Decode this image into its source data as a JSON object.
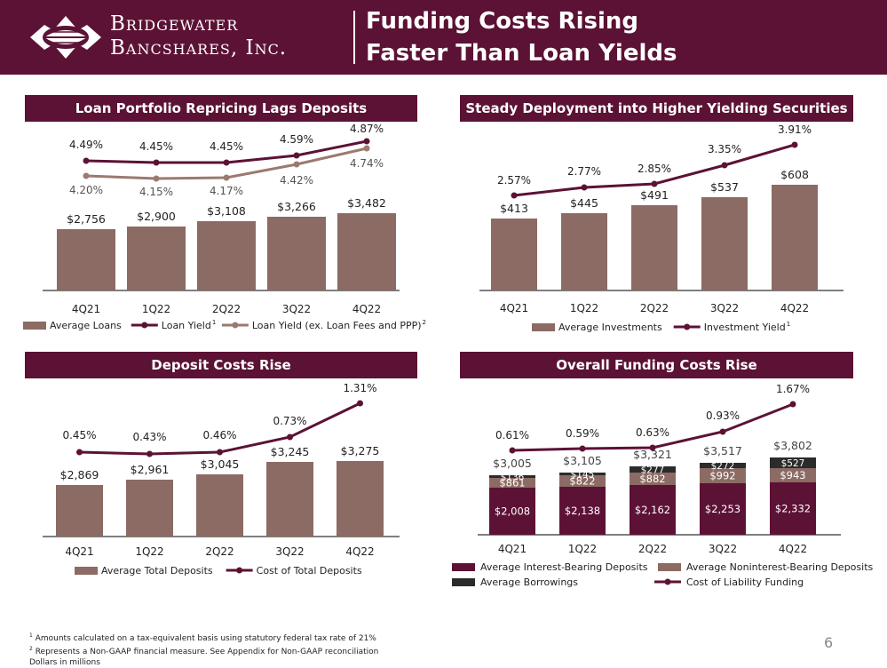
{
  "header": {
    "brand_line1": "Bridgewater",
    "brand_line2": "Bancshares, Inc.",
    "title_line1": "Funding Costs Rising",
    "title_line2": "Faster Than Loan Yields"
  },
  "colors": {
    "maroon": "#5c1234",
    "bar": "#8b6b63",
    "secondary_line": "#9a7a70",
    "borrowings": "#2b2b2b",
    "axis": "#333333"
  },
  "chart_data": [
    {
      "id": "loans",
      "type": "bar",
      "title": "Loan Portfolio Repricing Lags Deposits",
      "categories": [
        "4Q21",
        "1Q22",
        "2Q22",
        "3Q22",
        "4Q22"
      ],
      "bars": {
        "name": "Average Loans",
        "values": [
          2756,
          2900,
          3108,
          3266,
          3482
        ],
        "labels": [
          "$2,756",
          "$2,900",
          "$3,108",
          "$3,266",
          "$3,482"
        ]
      },
      "lines": [
        {
          "name": "Loan Yield",
          "sup": "1",
          "values": [
            4.49,
            4.45,
            4.45,
            4.59,
            4.87
          ],
          "labels": [
            "4.49%",
            "4.45%",
            "4.45%",
            "4.59%",
            "4.87%"
          ]
        },
        {
          "name": "Loan Yield (ex. Loan Fees and PPP)",
          "sup": "2",
          "values": [
            4.2,
            4.15,
            4.17,
            4.42,
            4.74
          ],
          "labels": [
            "4.20%",
            "4.15%",
            "4.17%",
            "4.42%",
            "4.74%"
          ]
        }
      ]
    },
    {
      "id": "securities",
      "type": "bar",
      "title": "Steady Deployment into Higher Yielding Securities",
      "categories": [
        "4Q21",
        "1Q22",
        "2Q22",
        "3Q22",
        "4Q22"
      ],
      "bars": {
        "name": "Average Investments",
        "values": [
          413,
          445,
          491,
          537,
          608
        ],
        "labels": [
          "$413",
          "$445",
          "$491",
          "$537",
          "$608"
        ]
      },
      "lines": [
        {
          "name": "Investment Yield",
          "sup": "1",
          "values": [
            2.57,
            2.77,
            2.85,
            3.35,
            3.91
          ],
          "labels": [
            "2.57%",
            "2.77%",
            "2.85%",
            "3.35%",
            "3.91%"
          ]
        }
      ]
    },
    {
      "id": "deposits",
      "type": "bar",
      "title": "Deposit Costs Rise",
      "categories": [
        "4Q21",
        "1Q22",
        "2Q22",
        "3Q22",
        "4Q22"
      ],
      "bars": {
        "name": "Average Total Deposits",
        "values": [
          2869,
          2961,
          3045,
          3245,
          3275
        ],
        "labels": [
          "$2,869",
          "$2,961",
          "$3,045",
          "$3,245",
          "$3,275"
        ]
      },
      "lines": [
        {
          "name": "Cost of Total Deposits",
          "sup": "",
          "values": [
            0.45,
            0.43,
            0.46,
            0.73,
            1.31
          ],
          "labels": [
            "0.45%",
            "0.43%",
            "0.46%",
            "0.73%",
            "1.31%"
          ]
        }
      ]
    },
    {
      "id": "funding",
      "type": "stacked_bar",
      "title": "Overall Funding Costs Rise",
      "categories": [
        "4Q21",
        "1Q22",
        "2Q22",
        "3Q22",
        "4Q22"
      ],
      "stacks": [
        {
          "name": "Average Interest-Bearing Deposits",
          "values": [
            2008,
            2138,
            2162,
            2253,
            2332
          ],
          "labels": [
            "$2,008",
            "$2,138",
            "$2,162",
            "$2,253",
            "$2,332"
          ]
        },
        {
          "name": "Average Noninterest-Bearing Deposits",
          "values": [
            861,
            822,
            882,
            992,
            943
          ],
          "labels": [
            "$861",
            "$822",
            "$882",
            "$992",
            "$943"
          ]
        },
        {
          "name": "Average Borrowings",
          "values": [
            136,
            145,
            277,
            272,
            527
          ],
          "labels": [
            "$136",
            "$145",
            "$277",
            "$272",
            "$527"
          ]
        }
      ],
      "totals": [
        "$3,005",
        "$3,105",
        "$3,321",
        "$3,517",
        "$3,802"
      ],
      "lines": [
        {
          "name": "Cost of Liability Funding",
          "sup": "",
          "values": [
            0.61,
            0.59,
            0.63,
            0.93,
            1.67
          ],
          "labels": [
            "0.61%",
            "0.59%",
            "0.63%",
            "0.93%",
            "1.67%"
          ]
        }
      ]
    }
  ],
  "footnotes": {
    "note1": "Amounts calculated on a tax-equivalent basis using statutory federal tax rate of 21%",
    "note2": "Represents a Non-GAAP financial measure. See Appendix for Non-GAAP reconciliation",
    "note3": "Dollars in millions",
    "sup1": "1",
    "sup2": "2"
  },
  "page_number": "6"
}
